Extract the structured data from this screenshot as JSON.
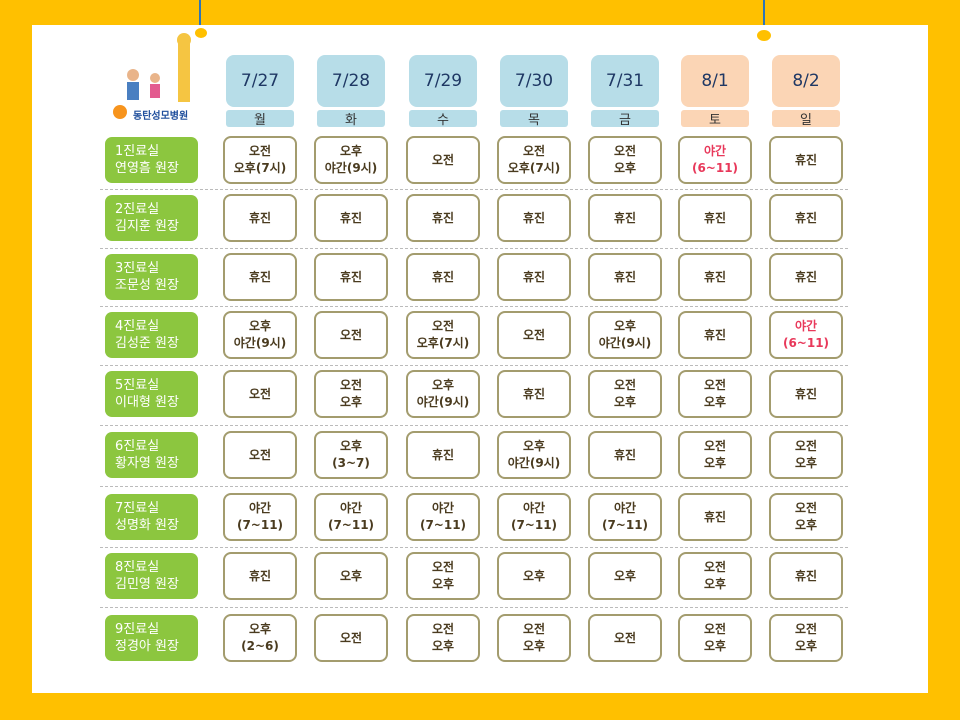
{
  "header": {
    "hospital": "동탄성모병원"
  },
  "days": [
    {
      "date": "7/27",
      "weekday": "월",
      "color": "#b7dde8"
    },
    {
      "date": "7/28",
      "weekday": "화",
      "color": "#b7dde8"
    },
    {
      "date": "7/29",
      "weekday": "수",
      "color": "#b7dde8"
    },
    {
      "date": "7/30",
      "weekday": "목",
      "color": "#b7dde8"
    },
    {
      "date": "7/31",
      "weekday": "금",
      "color": "#b7dde8"
    },
    {
      "date": "8/1",
      "weekday": "토",
      "color": "#fbd5b5"
    },
    {
      "date": "8/2",
      "weekday": "일",
      "color": "#fbd5b5"
    }
  ],
  "rows": [
    {
      "room": "1진료실",
      "doctor": "연영흠 원장",
      "cells": [
        {
          "lines": [
            "오전",
            "오후(7시)"
          ]
        },
        {
          "lines": [
            "오후",
            "야간(9시)"
          ]
        },
        {
          "lines": [
            "오전"
          ]
        },
        {
          "lines": [
            "오전",
            "오후(7시)"
          ]
        },
        {
          "lines": [
            "오전",
            "오후"
          ]
        },
        {
          "lines": [
            "야간",
            "(6~11)"
          ],
          "color": "#e8385a"
        },
        {
          "lines": [
            "휴진"
          ]
        }
      ]
    },
    {
      "room": "2진료실",
      "doctor": "김지훈 원장",
      "cells": [
        {
          "lines": [
            "휴진"
          ]
        },
        {
          "lines": [
            "휴진"
          ]
        },
        {
          "lines": [
            "휴진"
          ]
        },
        {
          "lines": [
            "휴진"
          ]
        },
        {
          "lines": [
            "휴진"
          ]
        },
        {
          "lines": [
            "휴진"
          ]
        },
        {
          "lines": [
            "휴진"
          ]
        }
      ]
    },
    {
      "room": "3진료실",
      "doctor": "조문성 원장",
      "cells": [
        {
          "lines": [
            "휴진"
          ]
        },
        {
          "lines": [
            "휴진"
          ]
        },
        {
          "lines": [
            "휴진"
          ]
        },
        {
          "lines": [
            "휴진"
          ]
        },
        {
          "lines": [
            "휴진"
          ]
        },
        {
          "lines": [
            "휴진"
          ]
        },
        {
          "lines": [
            "휴진"
          ]
        }
      ]
    },
    {
      "room": "4진료실",
      "doctor": "김성준 원장",
      "cells": [
        {
          "lines": [
            "오후",
            "야간(9시)"
          ]
        },
        {
          "lines": [
            "오전"
          ]
        },
        {
          "lines": [
            "오전",
            "오후(7시)"
          ]
        },
        {
          "lines": [
            "오전"
          ]
        },
        {
          "lines": [
            "오후",
            "야간(9시)"
          ]
        },
        {
          "lines": [
            "휴진"
          ]
        },
        {
          "lines": [
            "야간",
            "(6~11)"
          ],
          "color": "#e8385a"
        }
      ]
    },
    {
      "room": "5진료실",
      "doctor": "이대형 원장",
      "cells": [
        {
          "lines": [
            "오전"
          ]
        },
        {
          "lines": [
            "오전",
            "오후"
          ]
        },
        {
          "lines": [
            "오후",
            "야간(9시)"
          ]
        },
        {
          "lines": [
            "휴진"
          ]
        },
        {
          "lines": [
            "오전",
            "오후"
          ]
        },
        {
          "lines": [
            "오전",
            "오후"
          ]
        },
        {
          "lines": [
            "휴진"
          ]
        }
      ]
    },
    {
      "room": "6진료실",
      "doctor": "황자영 원장",
      "cells": [
        {
          "lines": [
            "오전"
          ]
        },
        {
          "lines": [
            "오후",
            "(3~7)"
          ]
        },
        {
          "lines": [
            "휴진"
          ]
        },
        {
          "lines": [
            "오후",
            "야간(9시)"
          ]
        },
        {
          "lines": [
            "휴진"
          ]
        },
        {
          "lines": [
            "오전",
            "오후"
          ]
        },
        {
          "lines": [
            "오전",
            "오후"
          ]
        }
      ]
    },
    {
      "room": "7진료실",
      "doctor": "성명화 원장",
      "cells": [
        {
          "lines": [
            "야간",
            "(7~11)"
          ]
        },
        {
          "lines": [
            "야간",
            "(7~11)"
          ]
        },
        {
          "lines": [
            "야간",
            "(7~11)"
          ]
        },
        {
          "lines": [
            "야간",
            "(7~11)"
          ]
        },
        {
          "lines": [
            "야간",
            "(7~11)"
          ]
        },
        {
          "lines": [
            "휴진"
          ]
        },
        {
          "lines": [
            "오전",
            "오후"
          ]
        }
      ]
    },
    {
      "room": "8진료실",
      "doctor": "김민영 원장",
      "cells": [
        {
          "lines": [
            "휴진"
          ]
        },
        {
          "lines": [
            "오후"
          ]
        },
        {
          "lines": [
            "오전",
            "오후"
          ]
        },
        {
          "lines": [
            "오후"
          ]
        },
        {
          "lines": [
            "오후"
          ]
        },
        {
          "lines": [
            "오전",
            "오후"
          ]
        },
        {
          "lines": [
            "휴진"
          ]
        }
      ]
    },
    {
      "room": "9진료실",
      "doctor": "정경아 원장",
      "cells": [
        {
          "lines": [
            "오후",
            "(2~6)"
          ]
        },
        {
          "lines": [
            "오전"
          ]
        },
        {
          "lines": [
            "오전",
            "오후"
          ]
        },
        {
          "lines": [
            "오전",
            "오후"
          ]
        },
        {
          "lines": [
            "오전"
          ]
        },
        {
          "lines": [
            "오전",
            "오후"
          ]
        },
        {
          "lines": [
            "오전",
            "오후"
          ]
        }
      ]
    }
  ]
}
